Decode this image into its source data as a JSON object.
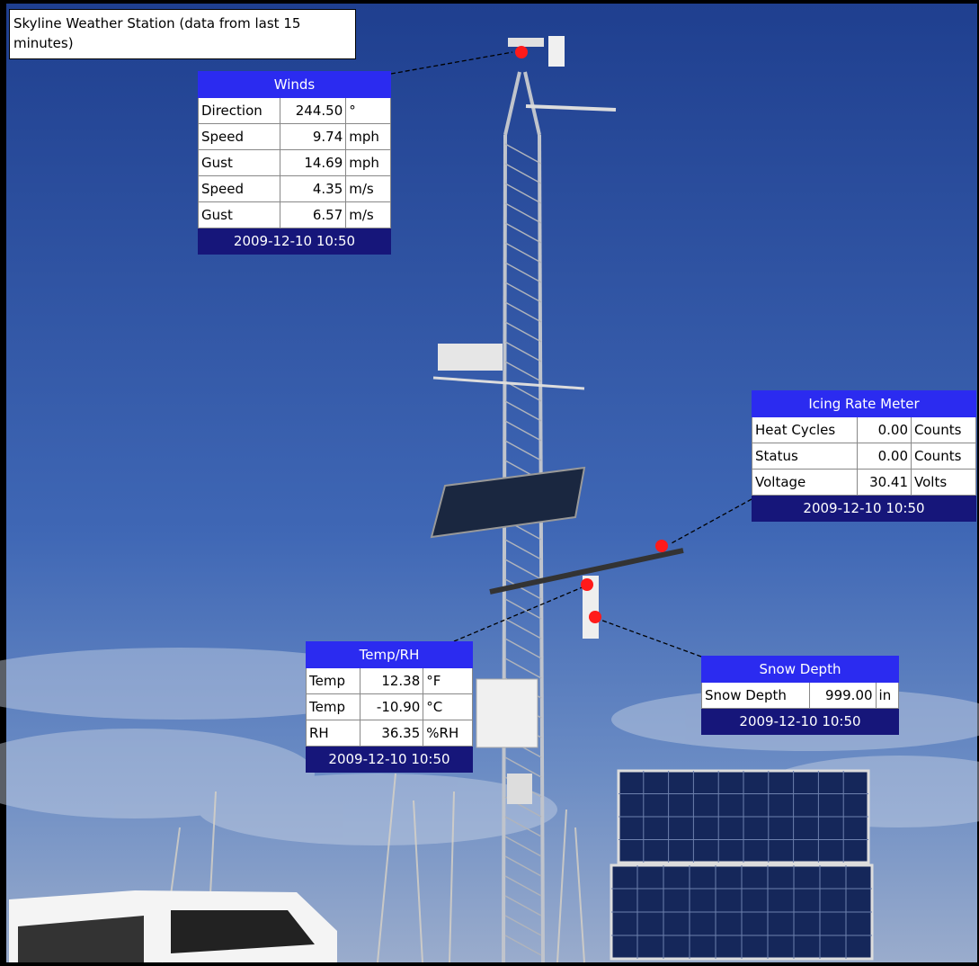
{
  "header": {
    "title": "Skyline Weather Station (data from last 15 minutes)"
  },
  "panels": [
    {
      "title": "Winds",
      "rows": [
        [
          "Direction",
          "244.50",
          "°"
        ],
        [
          "Speed",
          "9.74",
          "mph"
        ],
        [
          "Gust",
          "14.69",
          "mph"
        ],
        [
          "Speed",
          "4.35",
          "m/s"
        ],
        [
          "Gust",
          "6.57",
          "m/s"
        ]
      ],
      "timestamp": "2009-12-10 10:50"
    },
    {
      "title": "Icing Rate Meter",
      "rows": [
        [
          "Heat Cycles",
          "0.00",
          "Counts"
        ],
        [
          "Status",
          "0.00",
          "Counts"
        ],
        [
          "Voltage",
          "30.41",
          "Volts"
        ]
      ],
      "timestamp": "2009-12-10 10:50"
    },
    {
      "title": "Temp/RH",
      "rows": [
        [
          "Temp",
          "12.38",
          "°F"
        ],
        [
          "Temp",
          "-10.90",
          "°C"
        ],
        [
          "RH",
          "36.35",
          "%RH"
        ]
      ],
      "timestamp": "2009-12-10 10:50"
    },
    {
      "title": "Snow Depth",
      "rows": [
        [
          "Snow Depth",
          "999.00",
          "in"
        ]
      ],
      "timestamp": "2009-12-10 10:50"
    }
  ]
}
